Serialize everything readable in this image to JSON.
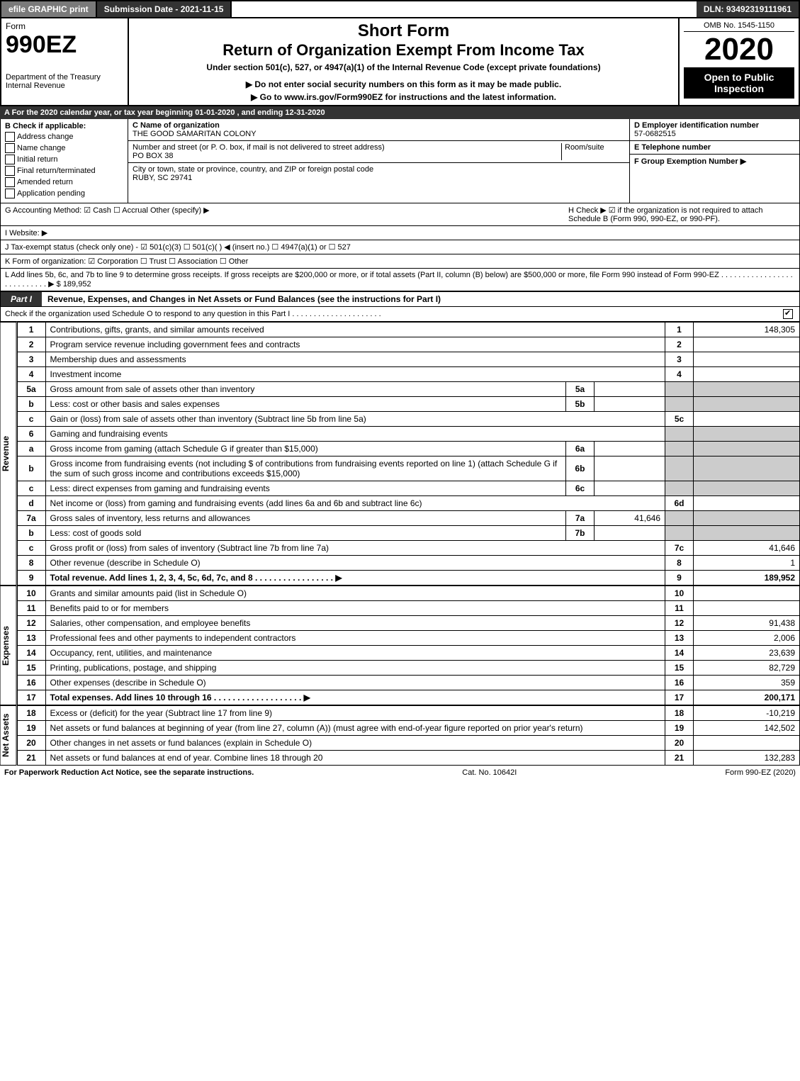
{
  "topbar": {
    "efile": "efile GRAPHIC print",
    "subdate_label": "Submission Date - 2021-11-15",
    "dln": "DLN: 93492319111961"
  },
  "header": {
    "form_word": "Form",
    "form_number": "990EZ",
    "dept": "Department of the Treasury",
    "irs": "Internal Revenue",
    "short_form": "Short Form",
    "title": "Return of Organization Exempt From Income Tax",
    "subtitle": "Under section 501(c), 527, or 4947(a)(1) of the Internal Revenue Code (except private foundations)",
    "warn": "▶ Do not enter social security numbers on this form as it may be made public.",
    "goto": "▶ Go to www.irs.gov/Form990EZ for instructions and the latest information.",
    "omb": "OMB No. 1545-1150",
    "year": "2020",
    "open": "Open to Public Inspection"
  },
  "sectionA": "A For the 2020 calendar year, or tax year beginning 01-01-2020 , and ending 12-31-2020",
  "boxB": {
    "title": "B  Check if applicable:",
    "opts": [
      "Address change",
      "Name change",
      "Initial return",
      "Final return/terminated",
      "Amended return",
      "Application pending"
    ]
  },
  "boxC": {
    "label": "C Name of organization",
    "name": "THE GOOD SAMARITAN COLONY",
    "addr_label": "Number and street (or P. O. box, if mail is not delivered to street address)",
    "room": "Room/suite",
    "addr": "PO BOX 38",
    "city_label": "City or town, state or province, country, and ZIP or foreign postal code",
    "city": "RUBY, SC  29741"
  },
  "boxD": {
    "label": "D Employer identification number",
    "value": "57-0682515"
  },
  "boxE": {
    "label": "E Telephone number",
    "value": ""
  },
  "boxF": {
    "label": "F Group Exemption Number  ▶",
    "value": ""
  },
  "lineG": "G Accounting Method:   ☑ Cash   ☐ Accrual   Other (specify) ▶",
  "lineH": "H   Check ▶  ☑  if the organization is not required to attach Schedule B (Form 990, 990-EZ, or 990-PF).",
  "lineI": "I Website: ▶",
  "lineJ": "J Tax-exempt status (check only one) -  ☑ 501(c)(3)  ☐  501(c)(  ) ◀ (insert no.)  ☐  4947(a)(1) or  ☐  527",
  "lineK": "K Form of organization:   ☑ Corporation   ☐ Trust   ☐ Association   ☐ Other",
  "lineL": "L Add lines 5b, 6c, and 7b to line 9 to determine gross receipts. If gross receipts are $200,000 or more, or if total assets (Part II, column (B) below) are $500,000 or more, file Form 990 instead of Form 990-EZ  . . . . . . . . . . . . . . . . . . . . . . . . . . .  ▶ $ 189,952",
  "partI": {
    "tab": "Part I",
    "title": "Revenue, Expenses, and Changes in Net Assets or Fund Balances (see the instructions for Part I)",
    "check_note": "Check if the organization used Schedule O to respond to any question in this Part I . . . . . . . . . . . . . . . . . . . . .",
    "checked": true
  },
  "sections": {
    "revenue": "Revenue",
    "expenses": "Expenses",
    "netassets": "Net Assets"
  },
  "rows": [
    {
      "ln": "1",
      "desc": "Contributions, gifts, grants, and similar amounts received",
      "num": "1",
      "amt": "148,305"
    },
    {
      "ln": "2",
      "desc": "Program service revenue including government fees and contracts",
      "num": "2",
      "amt": ""
    },
    {
      "ln": "3",
      "desc": "Membership dues and assessments",
      "num": "3",
      "amt": ""
    },
    {
      "ln": "4",
      "desc": "Investment income",
      "num": "4",
      "amt": ""
    },
    {
      "ln": "5a",
      "desc": "Gross amount from sale of assets other than inventory",
      "sub": "5a",
      "subamt": ""
    },
    {
      "ln": "b",
      "desc": "Less: cost or other basis and sales expenses",
      "sub": "5b",
      "subamt": ""
    },
    {
      "ln": "c",
      "desc": "Gain or (loss) from sale of assets other than inventory (Subtract line 5b from line 5a)",
      "num": "5c",
      "amt": ""
    },
    {
      "ln": "6",
      "desc": "Gaming and fundraising events"
    },
    {
      "ln": "a",
      "desc": "Gross income from gaming (attach Schedule G if greater than $15,000)",
      "sub": "6a",
      "subamt": ""
    },
    {
      "ln": "b",
      "desc": "Gross income from fundraising events (not including $                of contributions from fundraising events reported on line 1) (attach Schedule G if the sum of such gross income and contributions exceeds $15,000)",
      "sub": "6b",
      "subamt": ""
    },
    {
      "ln": "c",
      "desc": "Less: direct expenses from gaming and fundraising events",
      "sub": "6c",
      "subamt": ""
    },
    {
      "ln": "d",
      "desc": "Net income or (loss) from gaming and fundraising events (add lines 6a and 6b and subtract line 6c)",
      "num": "6d",
      "amt": ""
    },
    {
      "ln": "7a",
      "desc": "Gross sales of inventory, less returns and allowances",
      "sub": "7a",
      "subamt": "41,646"
    },
    {
      "ln": "b",
      "desc": "Less: cost of goods sold",
      "sub": "7b",
      "subamt": ""
    },
    {
      "ln": "c",
      "desc": "Gross profit or (loss) from sales of inventory (Subtract line 7b from line 7a)",
      "num": "7c",
      "amt": "41,646"
    },
    {
      "ln": "8",
      "desc": "Other revenue (describe in Schedule O)",
      "num": "8",
      "amt": "1"
    },
    {
      "ln": "9",
      "desc": "Total revenue. Add lines 1, 2, 3, 4, 5c, 6d, 7c, and 8   . . . . . . . . . . . . . . . . .   ▶",
      "num": "9",
      "amt": "189,952",
      "bold": true
    }
  ],
  "exp_rows": [
    {
      "ln": "10",
      "desc": "Grants and similar amounts paid (list in Schedule O)",
      "num": "10",
      "amt": ""
    },
    {
      "ln": "11",
      "desc": "Benefits paid to or for members",
      "num": "11",
      "amt": ""
    },
    {
      "ln": "12",
      "desc": "Salaries, other compensation, and employee benefits",
      "num": "12",
      "amt": "91,438"
    },
    {
      "ln": "13",
      "desc": "Professional fees and other payments to independent contractors",
      "num": "13",
      "amt": "2,006"
    },
    {
      "ln": "14",
      "desc": "Occupancy, rent, utilities, and maintenance",
      "num": "14",
      "amt": "23,639"
    },
    {
      "ln": "15",
      "desc": "Printing, publications, postage, and shipping",
      "num": "15",
      "amt": "82,729"
    },
    {
      "ln": "16",
      "desc": "Other expenses (describe in Schedule O)",
      "num": "16",
      "amt": "359"
    },
    {
      "ln": "17",
      "desc": "Total expenses. Add lines 10 through 16   . . . . . . . . . . . . . . . . . . .   ▶",
      "num": "17",
      "amt": "200,171",
      "bold": true
    }
  ],
  "net_rows": [
    {
      "ln": "18",
      "desc": "Excess or (deficit) for the year (Subtract line 17 from line 9)",
      "num": "18",
      "amt": "-10,219"
    },
    {
      "ln": "19",
      "desc": "Net assets or fund balances at beginning of year (from line 27, column (A)) (must agree with end-of-year figure reported on prior year's return)",
      "num": "19",
      "amt": "142,502"
    },
    {
      "ln": "20",
      "desc": "Other changes in net assets or fund balances (explain in Schedule O)",
      "num": "20",
      "amt": ""
    },
    {
      "ln": "21",
      "desc": "Net assets or fund balances at end of year. Combine lines 18 through 20",
      "num": "21",
      "amt": "132,283"
    }
  ],
  "footer": {
    "left": "For Paperwork Reduction Act Notice, see the separate instructions.",
    "mid": "Cat. No. 10642I",
    "right": "Form 990-EZ (2020)"
  }
}
